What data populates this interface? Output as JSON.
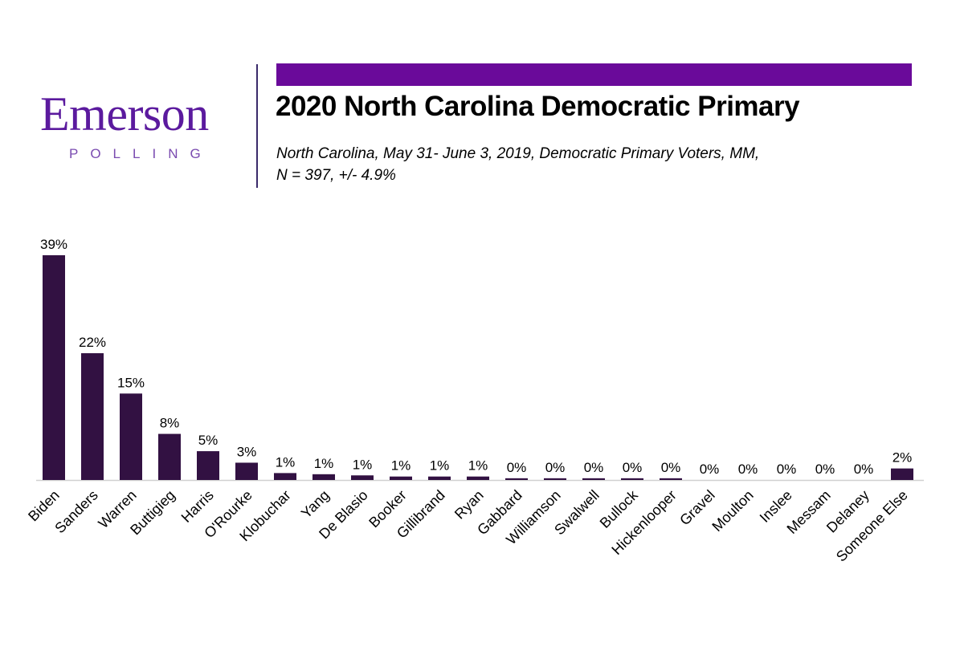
{
  "logo": {
    "name": "Emerson",
    "sub": "POLLING"
  },
  "header": {
    "title": "2020 North Carolina Democratic Primary",
    "subtitle_line1": "North Carolina, May 31- June 3, 2019, Democratic Primary Voters, MM,",
    "subtitle_line2": "N = 397,  +/- 4.9%"
  },
  "colors": {
    "bar": "#321142",
    "accent": "#6a0a9a",
    "logo": "#5b1a9e"
  },
  "chart_data": {
    "type": "bar",
    "title": "2020 North Carolina Democratic Primary",
    "xlabel": "",
    "ylabel": "",
    "ylim": [
      0,
      39
    ],
    "grid": false,
    "categories": [
      "Biden",
      "Sanders",
      "Warren",
      "Buttigieg",
      "Harris",
      "O'Rourke",
      "Klobuchar",
      "Yang",
      "De Blasio",
      "Booker",
      "Gillibrand",
      "Ryan",
      "Gabbard",
      "Williamson",
      "Swalwell",
      "Bullock",
      "Hickenlooper",
      "Gravel",
      "Moulton",
      "Inslee",
      "Messam",
      "Delaney",
      "Someone Else"
    ],
    "values": [
      39,
      22,
      15,
      8,
      5,
      3,
      1.2,
      1,
      0.8,
      0.6,
      0.6,
      0.6,
      0.3,
      0.3,
      0.3,
      0.3,
      0.3,
      0,
      0,
      0,
      0,
      0,
      2
    ],
    "labels": [
      "39%",
      "22%",
      "15%",
      "8%",
      "5%",
      "3%",
      "1%",
      "1%",
      "1%",
      "1%",
      "1%",
      "1%",
      "0%",
      "0%",
      "0%",
      "0%",
      "0%",
      "0%",
      "0%",
      "0%",
      "0%",
      "0%",
      "2%"
    ]
  }
}
